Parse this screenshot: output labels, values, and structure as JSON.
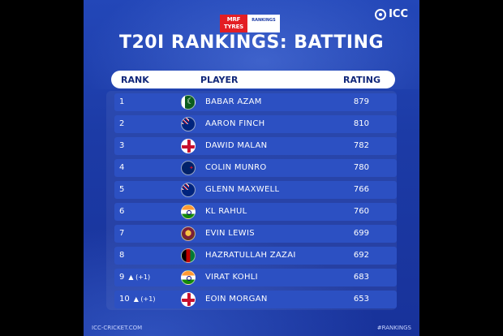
{
  "sponsor": {
    "mrf": "MRF TYRES",
    "rankings": "RANKINGS"
  },
  "brand": "ICC",
  "title": "T20I RANKINGS: BATTING",
  "headers": {
    "rank": "RANK",
    "player": "PLAYER",
    "rating": "RATING"
  },
  "rows": [
    {
      "rank": "1",
      "move": "",
      "name": "BABAR AZAM",
      "rating": "879",
      "flag": "pakistan-flag-icon"
    },
    {
      "rank": "2",
      "move": "",
      "name": "AARON FINCH",
      "rating": "810",
      "flag": "australia-flag-icon"
    },
    {
      "rank": "3",
      "move": "",
      "name": "DAWID MALAN",
      "rating": "782",
      "flag": "england-flag-icon"
    },
    {
      "rank": "4",
      "move": "",
      "name": "COLIN MUNRO",
      "rating": "780",
      "flag": "new-zealand-flag-icon"
    },
    {
      "rank": "5",
      "move": "",
      "name": "GLENN MAXWELL",
      "rating": "766",
      "flag": "australia-flag-icon"
    },
    {
      "rank": "6",
      "move": "",
      "name": "KL RAHUL",
      "rating": "760",
      "flag": "india-flag-icon"
    },
    {
      "rank": "7",
      "move": "",
      "name": "EVIN LEWIS",
      "rating": "699",
      "flag": "west-indies-flag-icon"
    },
    {
      "rank": "8",
      "move": "",
      "name": "HAZRATULLAH ZAZAI",
      "rating": "692",
      "flag": "afghanistan-flag-icon"
    },
    {
      "rank": "9",
      "move": "▲ (+1)",
      "name": "VIRAT KOHLI",
      "rating": "683",
      "flag": "india-flag-icon"
    },
    {
      "rank": "10",
      "move": "▲ (+1)",
      "name": "EOIN MORGAN",
      "rating": "653",
      "flag": "england-flag-icon"
    }
  ],
  "footer": {
    "left": "ICC-CRICKET.COM",
    "right": "#RANKINGS"
  },
  "colors": {
    "background": "#1c3ba6",
    "row": "#2c50c2",
    "header": "#ffffff",
    "mrf": "#e31e24"
  }
}
